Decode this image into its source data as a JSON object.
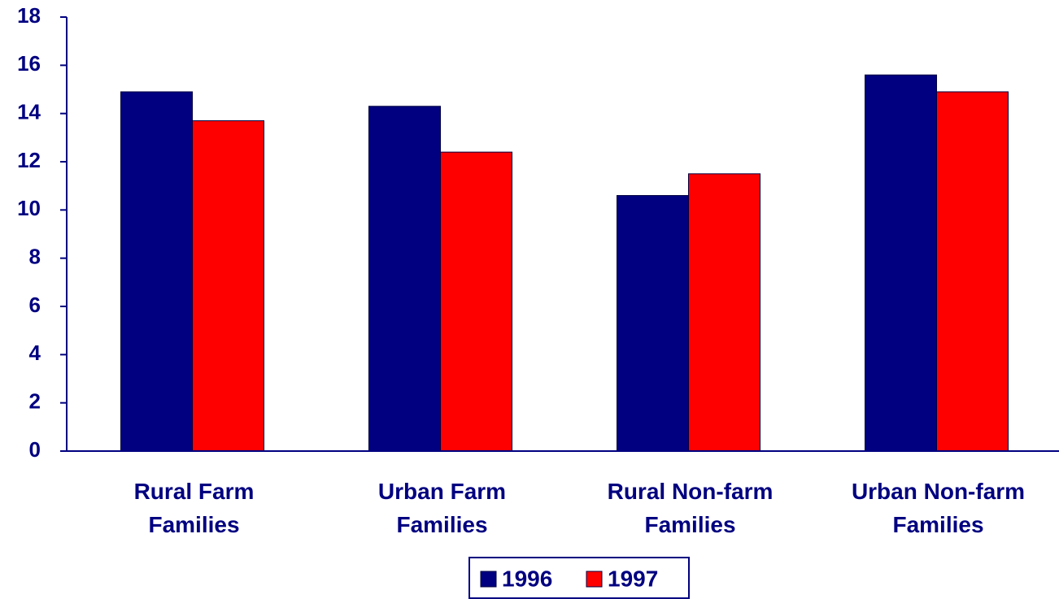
{
  "chart_data": {
    "type": "bar",
    "categories": [
      "Rural Farm Families",
      "Urban Farm Families",
      "Rural Non-farm Families",
      "Urban Non-farm Families"
    ],
    "series": [
      {
        "name": "1996",
        "color": "#000080",
        "values": [
          14.9,
          14.3,
          10.6,
          15.6
        ]
      },
      {
        "name": "1997",
        "color": "#ff0000",
        "values": [
          13.7,
          12.4,
          11.5,
          14.9
        ]
      }
    ],
    "ylim": [
      0,
      18
    ],
    "yticks": [
      0,
      2,
      4,
      6,
      8,
      10,
      12,
      14,
      16,
      18
    ],
    "grid": false,
    "legend": "bottom"
  }
}
